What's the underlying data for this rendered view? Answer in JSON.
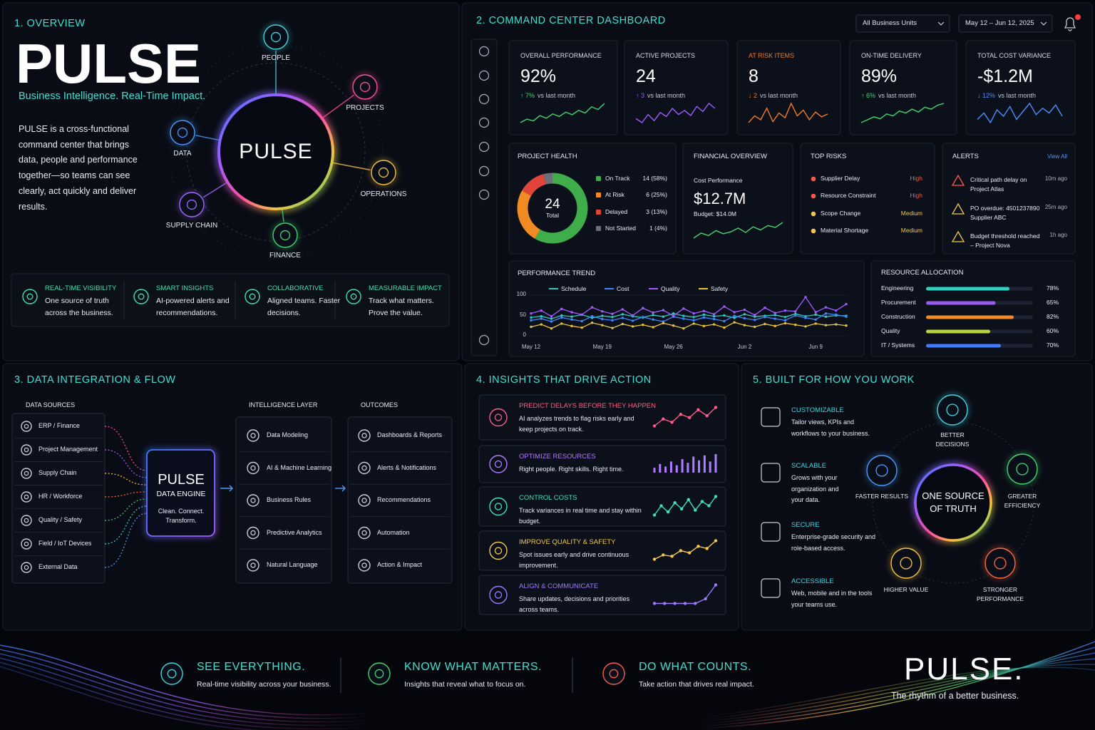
{
  "overview": {
    "heading": "1. OVERVIEW",
    "title": "PULSE",
    "tagline": "Business Intelligence. Real-Time Impact.",
    "description": "PULSE is a cross-functional command center that brings data, people and performance together—so teams can see clearly, act quickly and deliver results.",
    "hub": "PULSE",
    "nodes": [
      "PEOPLE",
      "PROJECTS",
      "OPERATIONS",
      "FINANCE",
      "SUPPLY CHAIN",
      "DATA"
    ],
    "features": [
      {
        "title": "REAL-TIME VISIBILITY",
        "text": "One source of truth across the business."
      },
      {
        "title": "SMART INSIGHTS",
        "text": "AI-powered alerts and recommendations."
      },
      {
        "title": "COLLABORATIVE",
        "text": "Aligned teams. Faster decisions."
      },
      {
        "title": "MEASURABLE IMPACT",
        "text": "Track what matters. Prove the value."
      }
    ]
  },
  "dashboard": {
    "heading": "2. COMMAND CENTER DASHBOARD",
    "filters": [
      "All Business Units",
      "May 12 – Jun 12, 2025"
    ],
    "kpis": [
      {
        "label": "OVERALL PERFORMANCE",
        "value": "92%",
        "delta": "↑ 7%",
        "compare": "vs last month",
        "color": "#3fd672",
        "spark": [
          30,
          34,
          32,
          38,
          35,
          40,
          37,
          42,
          39,
          44,
          41,
          48,
          45,
          52
        ]
      },
      {
        "label": "ACTIVE PROJECTS",
        "value": "24",
        "delta": "↑ 3",
        "compare": "vs last month",
        "color": "#a35cff",
        "spark": [
          40,
          36,
          44,
          38,
          46,
          42,
          50,
          44,
          48,
          43,
          52,
          47,
          55,
          50
        ]
      },
      {
        "label": "AT RISK ITEMS",
        "value": "8",
        "delta": "↓ 2",
        "compare": "vs last month",
        "color": "#f07a2a",
        "highlight": true,
        "spark": [
          35,
          42,
          38,
          50,
          36,
          45,
          40,
          55,
          42,
          48,
          38,
          46,
          41,
          44
        ]
      },
      {
        "label": "ON-TIME DELIVERY",
        "value": "89%",
        "delta": "↑ 6%",
        "compare": "vs last month",
        "color": "#3fd672",
        "spark": [
          30,
          33,
          36,
          34,
          39,
          37,
          42,
          40,
          44,
          41,
          46,
          44,
          48,
          50
        ]
      },
      {
        "label": "TOTAL COST VARIANCE",
        "value": "-$1.2M",
        "delta": "↓ 12%",
        "compare": "vs last month",
        "color": "#4a8dff",
        "spark": [
          40,
          44,
          38,
          46,
          42,
          48,
          40,
          45,
          50,
          43,
          47,
          44,
          49,
          42
        ]
      }
    ],
    "project_health": {
      "title": "PROJECT HEALTH",
      "type": "donut",
      "total": "24",
      "total_label": "Total",
      "categories": [
        "On Track",
        "At Risk",
        "Delayed",
        "Not Started"
      ],
      "values": [
        14,
        6,
        3,
        1
      ],
      "value_labels": [
        "14 (58%)",
        "6 (25%)",
        "3 (13%)",
        "1 (4%)"
      ],
      "colors": [
        "#3fae4a",
        "#f08a24",
        "#e0443a",
        "#6b6f78"
      ]
    },
    "financial": {
      "title": "FINANCIAL OVERVIEW",
      "subtitle": "Cost Performance",
      "value": "$12.7M",
      "budget": "Budget: $14.0M",
      "color": "#3fd672",
      "spark": [
        20,
        28,
        24,
        32,
        27,
        30,
        36,
        29,
        38,
        33,
        40,
        37,
        45
      ]
    },
    "top_risks": {
      "title": "TOP RISKS",
      "items": [
        {
          "name": "Supplier Delay",
          "level": "High",
          "color": "#ff5a4e"
        },
        {
          "name": "Resource Constraint",
          "level": "High",
          "color": "#ff5a4e"
        },
        {
          "name": "Scope Change",
          "level": "Medium",
          "color": "#f2c94c"
        },
        {
          "name": "Material Shortage",
          "level": "Medium",
          "color": "#f2c94c"
        }
      ]
    },
    "alerts": {
      "title": "ALERTS",
      "link": "View All",
      "items": [
        {
          "text": "Critical path delay on Project Atlas",
          "time": "10m ago",
          "color": "#ff5a4e"
        },
        {
          "text": "PO overdue: 4501237890 Supplier ABC",
          "time": "25m ago",
          "color": "#f2c94c"
        },
        {
          "text": "Budget threshold reached – Project Nova",
          "time": "1h ago",
          "color": "#f2c94c"
        }
      ]
    },
    "performance_trend": {
      "title": "PERFORMANCE TREND",
      "type": "line",
      "categories": [
        "May 12",
        null,
        null,
        null,
        null,
        null,
        null,
        "May 19",
        null,
        null,
        null,
        null,
        null,
        null,
        "May 26",
        null,
        null,
        null,
        null,
        null,
        null,
        "Jun 2",
        null,
        null,
        null,
        null,
        null,
        null,
        "Jun 9",
        null,
        null,
        null
      ],
      "series": [
        {
          "name": "Schedule",
          "color": "#2ec9c0",
          "values": [
            45,
            48,
            42,
            50,
            47,
            52,
            44,
            49,
            46,
            53,
            48,
            45,
            51,
            47,
            55,
            49,
            46,
            52,
            48,
            50,
            44,
            53,
            47,
            49,
            51,
            46,
            54,
            48,
            52,
            47,
            50,
            49
          ]
        },
        {
          "name": "Cost",
          "color": "#3f86ff",
          "values": [
            38,
            42,
            35,
            45,
            40,
            36,
            48,
            41,
            38,
            44,
            37,
            46,
            40,
            35,
            47,
            42,
            38,
            45,
            41,
            36,
            49,
            43,
            39,
            46,
            42,
            38,
            50,
            44,
            40,
            55,
            52,
            47
          ]
        },
        {
          "name": "Quality",
          "color": "#a35cff",
          "values": [
            55,
            62,
            48,
            66,
            58,
            52,
            70,
            60,
            54,
            65,
            50,
            68,
            57,
            63,
            49,
            67,
            55,
            61,
            53,
            72,
            58,
            64,
            51,
            69,
            56,
            62,
            60,
            95,
            58,
            70,
            62,
            78
          ]
        },
        {
          "name": "Safety",
          "color": "#e8c23a",
          "values": [
            22,
            28,
            18,
            30,
            24,
            20,
            32,
            26,
            19,
            29,
            23,
            27,
            21,
            31,
            25,
            18,
            30,
            24,
            28,
            20,
            33,
            26,
            22,
            29,
            24,
            31,
            27,
            23,
            30,
            26,
            28,
            25
          ]
        }
      ],
      "ylim": [
        0,
        100
      ],
      "yticks": [
        0,
        50,
        100
      ]
    },
    "resource_allocation": {
      "title": "RESOURCE ALLOCATION",
      "type": "bar",
      "categories": [
        "Engineering",
        "Procurement",
        "Construction",
        "Quality",
        "IT / Systems"
      ],
      "values": [
        78,
        65,
        82,
        60,
        70
      ],
      "value_labels": [
        "78%",
        "65%",
        "82%",
        "60%",
        "70%"
      ],
      "xlim": [
        0,
        100
      ],
      "colors": [
        "#2ed1c0",
        "#9a5cf0",
        "#f08a2a",
        "#b5d640",
        "#3f7bff"
      ]
    }
  },
  "integration": {
    "heading": "3. DATA INTEGRATION & FLOW",
    "sources_title": "DATA SOURCES",
    "sources": [
      "ERP / Finance",
      "Project Management",
      "Supply Chain",
      "HR / Workforce",
      "Quality / Safety",
      "Field / IoT Devices",
      "External Data"
    ],
    "engine": {
      "title": "PULSE",
      "subtitle": "DATA ENGINE",
      "text": "Clean. Connect. Transform."
    },
    "intelligence_title": "INTELLIGENCE LAYER",
    "intelligence": [
      "Data Modeling",
      "AI & Machine Learning",
      "Business Rules",
      "Predictive Analytics",
      "Natural Language"
    ],
    "outcomes_title": "OUTCOMES",
    "outcomes": [
      "Dashboards & Reports",
      "Alerts & Notifications",
      "Recommendations",
      "Automation",
      "Action & Impact"
    ]
  },
  "insights": {
    "heading": "4. INSIGHTS THAT DRIVE ACTION",
    "items": [
      {
        "title": "PREDICT DELAYS BEFORE THEY HAPPEN",
        "text": "AI analyzes trends to flag risks early and keep projects on track.",
        "color": "#ff5a8a",
        "chart": "line",
        "spark": [
          20,
          35,
          28,
          45,
          38,
          55,
          42,
          60
        ]
      },
      {
        "title": "OPTIMIZE RESOURCES",
        "text": "Right people. Right skills. Right time.",
        "color": "#b07cff",
        "chart": "bar",
        "spark": [
          20,
          35,
          25,
          45,
          30,
          55,
          40,
          65,
          50,
          70,
          45,
          75
        ]
      },
      {
        "title": "CONTROL COSTS",
        "text": "Track variances in real time and stay within budget.",
        "color": "#3ee0c0",
        "chart": "line",
        "spark": [
          30,
          45,
          35,
          50,
          40,
          55,
          38,
          52,
          45,
          60
        ]
      },
      {
        "title": "IMPROVE QUALITY & SAFETY",
        "text": "Spot issues early and drive continuous improvement.",
        "color": "#f2c94c",
        "chart": "line",
        "spark": [
          15,
          25,
          22,
          35,
          30,
          45,
          40,
          58
        ]
      },
      {
        "title": "ALIGN & COMMUNICATE",
        "text": "Share updates, decisions and priorities across teams.",
        "color": "#9b7bff",
        "chart": "line",
        "spark": [
          50,
          50,
          50,
          50,
          50,
          55,
          70
        ]
      }
    ]
  },
  "built": {
    "heading": "5. BUILT FOR HOW YOU WORK",
    "features": [
      {
        "title": "CUSTOMIZABLE",
        "text": "Tailor views, KPIs and workflows to your business."
      },
      {
        "title": "SCALABLE",
        "text": "Grows with your organization and your data."
      },
      {
        "title": "SECURE",
        "text": "Enterprise-grade security and role-based access."
      },
      {
        "title": "ACCESSIBLE",
        "text": "Web, mobile and in the tools your teams use."
      }
    ],
    "hub": "ONE SOURCE OF TRUTH",
    "benefits": [
      "BETTER DECISIONS",
      "GREATER EFFICIENCY",
      "STRONGER PERFORMANCE",
      "HIGHER VALUE",
      "FASTER RESULTS"
    ]
  },
  "footer": {
    "items": [
      {
        "title": "SEE EVERYTHING.",
        "text": "Real-time visibility across your business.",
        "color": "#3fd6e0"
      },
      {
        "title": "KNOW WHAT MATTERS.",
        "text": "Insights that reveal what to focus on.",
        "color": "#3fd672"
      },
      {
        "title": "DO WHAT COUNTS.",
        "text": "Take action that drives real impact.",
        "color": "#ff5a4e"
      }
    ],
    "brand": "PULSE.",
    "slogan": "The rhythm of a better business."
  }
}
